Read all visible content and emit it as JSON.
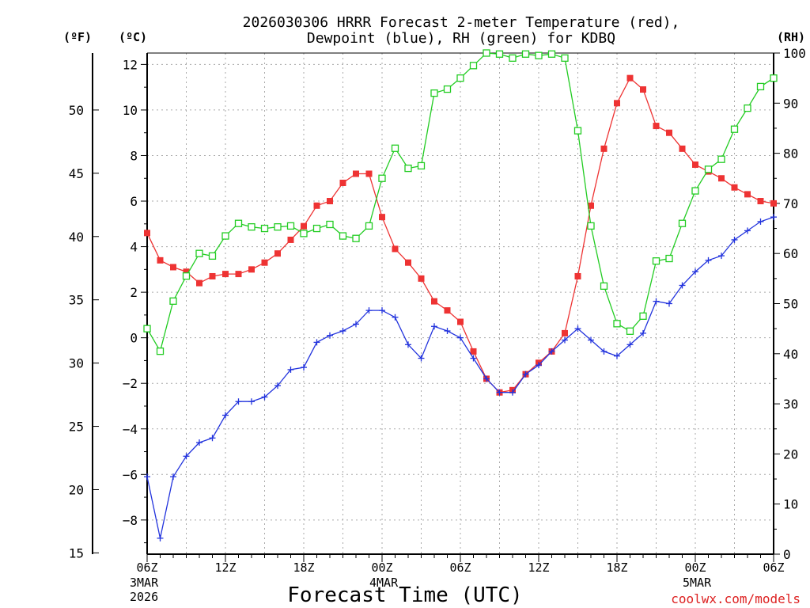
{
  "chart_data": {
    "type": "line",
    "title_line1": "2026030306 HRRR Forecast 2-meter Temperature (red),",
    "title_line2": "Dewpoint (blue), RH (green) for KDBQ",
    "xlabel": "Forecast Time (UTC)",
    "credit": "coolwx.com/models",
    "unit_f": "(ºF)",
    "unit_c": "(ºC)",
    "unit_rh": "(RH)",
    "x_range_hours": [
      0,
      48
    ],
    "y_left_c_range": [
      -9.5,
      12.5
    ],
    "y_left_f_ticks": [
      "15",
      "20",
      "25",
      "30",
      "35",
      "40",
      "45",
      "50"
    ],
    "y_left_c_ticks": [
      "-8",
      "-6",
      "-4",
      "-2",
      "0",
      "2",
      "4",
      "6",
      "8",
      "10",
      "12"
    ],
    "y_right_rh_range": [
      0,
      100
    ],
    "y_right_rh_ticks": [
      "0",
      "10",
      "20",
      "30",
      "40",
      "50",
      "60",
      "70",
      "80",
      "90",
      "100"
    ],
    "x_ticks": [
      {
        "hour": 0,
        "label": "06Z",
        "sub1": "3MAR",
        "sub2": "2026"
      },
      {
        "hour": 6,
        "label": "12Z"
      },
      {
        "hour": 12,
        "label": "18Z"
      },
      {
        "hour": 18,
        "label": "00Z",
        "sub1": "4MAR"
      },
      {
        "hour": 24,
        "label": "06Z"
      },
      {
        "hour": 30,
        "label": "12Z"
      },
      {
        "hour": 36,
        "label": "18Z"
      },
      {
        "hour": 42,
        "label": "00Z",
        "sub1": "5MAR"
      },
      {
        "hour": 48,
        "label": "06Z"
      }
    ],
    "series": [
      {
        "name": "Temperature (°C)",
        "axis": "celsius",
        "color": "#ee3333",
        "marker": "filled-square",
        "values": [
          4.6,
          3.4,
          3.1,
          2.9,
          2.4,
          2.7,
          2.8,
          2.8,
          3.0,
          3.3,
          3.7,
          4.3,
          4.9,
          5.8,
          6.0,
          6.8,
          7.2,
          7.2,
          5.3,
          3.9,
          3.3,
          2.6,
          1.6,
          1.2,
          0.7,
          -0.6,
          -1.8,
          -2.4,
          -2.3,
          -1.6,
          -1.1,
          -0.6,
          0.2,
          2.7,
          5.8,
          8.3,
          10.3,
          11.4,
          10.9,
          9.3,
          9.0,
          8.3,
          7.6,
          7.3,
          7.0,
          6.6,
          6.3,
          6.0,
          5.9
        ]
      },
      {
        "name": "Dewpoint (°C)",
        "axis": "celsius",
        "color": "#2233dd",
        "marker": "plus",
        "values": [
          -6.1,
          -8.8,
          -6.1,
          -5.2,
          -4.6,
          -4.4,
          -3.4,
          -2.8,
          -2.8,
          -2.6,
          -2.1,
          -1.4,
          -1.3,
          -0.2,
          0.1,
          0.3,
          0.6,
          1.2,
          1.2,
          0.9,
          -0.3,
          -0.9,
          0.5,
          0.3,
          0.0,
          -0.9,
          -1.8,
          -2.4,
          -2.4,
          -1.6,
          -1.2,
          -0.6,
          -0.1,
          0.4,
          -0.1,
          -0.6,
          -0.8,
          -0.3,
          0.2,
          1.6,
          1.5,
          2.3,
          2.9,
          3.4,
          3.6,
          4.3,
          4.7,
          5.1,
          5.3
        ]
      },
      {
        "name": "RH (%)",
        "axis": "rh",
        "color": "#22cc22",
        "marker": "open-square",
        "values": [
          45,
          40.5,
          50.5,
          55.5,
          60,
          59.5,
          63.5,
          66,
          65.3,
          65,
          65.3,
          65.5,
          64,
          65,
          65.8,
          63.5,
          63,
          65.5,
          75,
          81,
          77,
          77.5,
          92,
          92.8,
          95,
          97.5,
          100,
          99.8,
          99,
          99.8,
          99.5,
          99.8,
          99,
          84.5,
          65.5,
          53.5,
          46,
          44.5,
          47.5,
          58.5,
          59,
          66,
          72.5,
          76.8,
          78.8,
          84.8,
          89,
          93.3,
          95
        ]
      }
    ]
  }
}
